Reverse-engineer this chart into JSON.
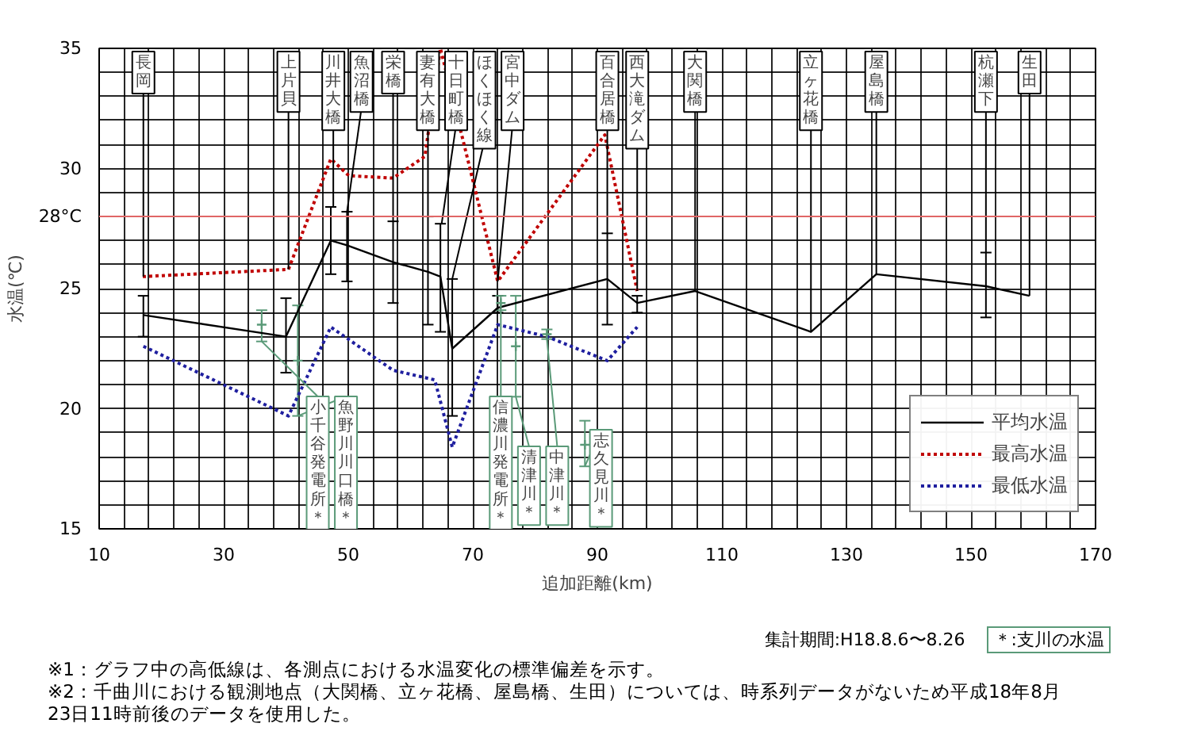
{
  "chart_data": {
    "type": "line",
    "xlabel": "追加距離(km)",
    "ylabel": "水温(℃)",
    "xlim": [
      10,
      170
    ],
    "ylim": [
      15,
      35
    ],
    "xticks": [
      10,
      {
        "value": 14,
        "label": null
      },
      {
        "value": 18,
        "label": null
      },
      {
        "value": 22,
        "label": null
      },
      {
        "value": 26,
        "label": null
      },
      30,
      {
        "value": 34,
        "label": null
      },
      {
        "value": 38,
        "label": null
      },
      {
        "value": 42,
        "label": null
      },
      {
        "value": 46,
        "label": null
      },
      50,
      {
        "value": 54,
        "label": null
      },
      {
        "value": 58,
        "label": null
      },
      {
        "value": 62,
        "label": null
      },
      {
        "value": 66,
        "label": null
      },
      70,
      {
        "value": 74,
        "label": null
      },
      {
        "value": 78,
        "label": null
      },
      {
        "value": 82,
        "label": null
      },
      {
        "value": 86,
        "label": null
      },
      90,
      {
        "value": 94,
        "label": null
      },
      {
        "value": 98,
        "label": null
      },
      {
        "value": 102,
        "label": null
      },
      {
        "value": 106,
        "label": null
      },
      110,
      {
        "value": 114,
        "label": null
      },
      {
        "value": 118,
        "label": null
      },
      {
        "value": 122,
        "label": null
      },
      {
        "value": 126,
        "label": null
      },
      130,
      {
        "value": 134,
        "label": null
      },
      {
        "value": 138,
        "label": null
      },
      {
        "value": 142,
        "label": null
      },
      {
        "value": 146,
        "label": null
      },
      150,
      {
        "value": 154,
        "label": null
      },
      {
        "value": 158,
        "label": null
      },
      {
        "value": 162,
        "label": null
      },
      {
        "value": 166,
        "label": null
      },
      170
    ],
    "yticks": [
      15,
      {
        "value": 16,
        "label": null
      },
      {
        "value": 17,
        "label": null
      },
      {
        "value": 18,
        "label": null
      },
      {
        "value": 19,
        "label": null
      },
      20,
      {
        "value": 21,
        "label": null
      },
      {
        "value": 22,
        "label": null
      },
      {
        "value": 23,
        "label": null
      },
      {
        "value": 24,
        "label": null
      },
      25,
      {
        "value": 26,
        "label": null
      },
      {
        "value": 27,
        "label": null
      },
      {
        "value": 28,
        "label": null
      },
      {
        "value": 29,
        "label": null
      },
      30,
      {
        "value": 31,
        "label": null
      },
      {
        "value": 32,
        "label": null
      },
      {
        "value": 33,
        "label": null
      },
      {
        "value": 34,
        "label": null
      },
      35
    ],
    "grid": true,
    "legend": "bottom right",
    "marker": "none",
    "series": [
      {
        "name": "平均水温",
        "color": "#000000",
        "line_style": "solid",
        "x": [
          17.1,
          40.0,
          47.2,
          49.8,
          57.2,
          62.8,
          64.8,
          66.7,
          74.0,
          91.6,
          96.4,
          105.7,
          124.3,
          134.8,
          152.4,
          159.4
        ],
        "values": [
          23.9,
          23.0,
          27.0,
          26.8,
          26.1,
          25.7,
          25.5,
          22.5,
          24.2,
          25.4,
          24.4,
          24.9,
          23.2,
          25.6,
          25.1,
          24.7
        ],
        "errors": [
          [
            23.0,
            24.7
          ],
          [
            21.5,
            24.6
          ],
          [
            25.6,
            28.4
          ],
          [
            25.3,
            28.2
          ],
          [
            24.4,
            27.8
          ],
          [
            23.5,
            28.0
          ],
          [
            23.2,
            27.7
          ],
          [
            19.7,
            25.4
          ],
          [
            24.0,
            24.7
          ],
          [
            23.5,
            27.3
          ],
          [
            24.0,
            24.7
          ],
          null,
          null,
          null,
          [
            23.8,
            26.5
          ],
          null
        ]
      },
      {
        "name": "最高水温",
        "color": "#c00000",
        "line_style": "dotted",
        "x": [
          17.0,
          40.4,
          47.2,
          50.1,
          57.2,
          62.3,
          64.8,
          74.0,
          91.2,
          96.4
        ],
        "values": [
          25.5,
          25.8,
          30.4,
          29.7,
          29.6,
          30.5,
          35.0,
          25.3,
          31.4,
          24.9
        ]
      },
      {
        "name": "最低水温",
        "color": "#1f1f9f",
        "line_style": "dotted",
        "x": [
          17.1,
          40.4,
          47.2,
          57.2,
          63.9,
          66.7,
          74.0,
          81.9,
          91.6,
          96.4
        ],
        "values": [
          22.6,
          19.7,
          23.4,
          21.6,
          21.2,
          18.4,
          23.5,
          23.0,
          22.0,
          23.4
        ]
      },
      {
        "type": "scatter",
        "marker": "cross",
        "color": "#5a9a78",
        "x": [
          36.1,
          41.9,
          74.5,
          76.9,
          81.9,
          88.0
        ],
        "values": [
          23.5,
          22.0,
          24.4,
          22.6,
          23.1,
          18.5
        ],
        "errors": [
          [
            22.8,
            24.1
          ],
          [
            19.7,
            24.3
          ],
          [
            24.1,
            24.7
          ],
          [
            20.5,
            24.7
          ],
          [
            22.9,
            23.3
          ],
          [
            17.6,
            19.5
          ]
        ]
      }
    ],
    "ref_lines": [
      {
        "axis": "y",
        "value": 28,
        "label": "28°C",
        "color": "#e06666"
      }
    ],
    "annotations": [
      {
        "text": "長岡",
        "x": 17.1,
        "y": 25.5
      },
      {
        "text": "上片貝",
        "x": 40.4,
        "y": 25.8
      },
      {
        "text": "川井大橋",
        "x": 47.6,
        "y": 28.4
      },
      {
        "text": "魚沼橋",
        "x": 49.8,
        "y": 28.2
      },
      {
        "text": "栄橋",
        "x": 57.2,
        "y": 27.8
      },
      {
        "text": "妻有大橋",
        "x": 62.8,
        "y": 28.0
      },
      {
        "text": "十日町橋",
        "x": 65.0,
        "y": 27.7
      },
      {
        "text": "ほくほく線",
        "x": 66.7,
        "y": 25.4
      },
      {
        "text": "宮中ダム",
        "x": 74.0,
        "y": 25.3
      },
      {
        "text": "百合居橋",
        "x": 91.6,
        "y": 27.3
      },
      {
        "text": "西大滝ダム",
        "x": 96.4,
        "y": 24.9
      },
      {
        "text": "大関橋",
        "x": 105.7,
        "y": 24.9
      },
      {
        "text": "立ヶ花橋",
        "x": 124.3,
        "y": 23.2
      },
      {
        "text": "屋島橋",
        "x": 134.8,
        "y": 25.6
      },
      {
        "text": "杭瀬下",
        "x": 152.4,
        "y": 26.5
      },
      {
        "text": "生田",
        "x": 159.4,
        "y": 24.7
      },
      {
        "text": "小千谷発電所＊",
        "x": 36.1,
        "y": 22.8
      },
      {
        "text": "魚野川川口橋＊",
        "x": 41.9,
        "y": 19.7
      },
      {
        "text": "信濃川発電所＊",
        "x": 74.5,
        "y": 24.1
      },
      {
        "text": "清津川＊",
        "x": 76.9,
        "y": 20.5
      },
      {
        "text": "中津川＊",
        "x": 81.9,
        "y": 22.9
      },
      {
        "text": "志久見川＊",
        "x": 88.0,
        "y": 17.6
      },
      "集計期間:H18.8.6〜8.26",
      "＊:支川の水温",
      "※1：グラフ中の高低線は、各測点における水温変化の標準偏差を示す。",
      "※2：千曲川における観測地点（大関橋、立ヶ花橋、屋島橋、生田）については、時系列データがないため平成18年8月23日11時前後のデータを使用した。"
    ]
  }
}
